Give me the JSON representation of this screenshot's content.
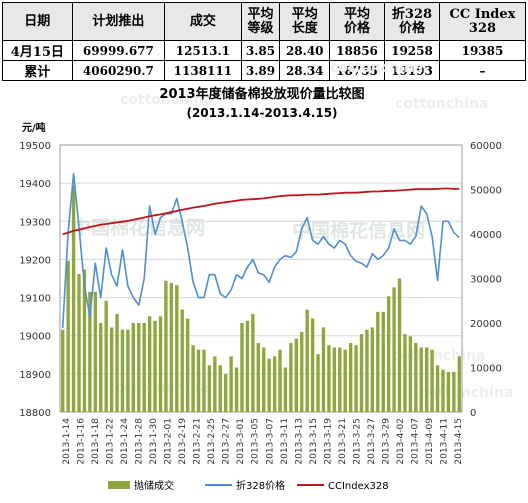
{
  "table": {
    "headers": [
      "日期",
      "计划推出",
      "成交",
      "平均\n等级",
      "平均\n长度",
      "平均\n价格",
      "折328\n价格",
      "CC Index\n328"
    ],
    "rows": [
      [
        "4月15日",
        "69999.677",
        "12513.1",
        "3.85",
        "28.40",
        "18856",
        "19258",
        "19385"
      ],
      [
        "累计",
        "4060290.7",
        "1138111",
        "3.89",
        "28.34",
        "18755",
        "19193",
        "–"
      ]
    ]
  },
  "watermark": "cottonchina",
  "watermark_cn": "中国棉花信息网",
  "chart_data": {
    "type": "bar+line",
    "title": "2013年度储备棉投放现价量比较图",
    "subtitle": "(2013.1.14-2013.4.15)",
    "left_axis_unit": "元/吨",
    "y_left": {
      "min": 18800,
      "max": 19500,
      "ticks": [
        18800,
        18900,
        19000,
        19100,
        19200,
        19300,
        19400,
        19500
      ]
    },
    "y_right": {
      "min": 0,
      "max": 60000,
      "ticks": [
        0,
        10000,
        20000,
        30000,
        40000,
        50000,
        60000
      ]
    },
    "x_tick_labels": [
      "2013-1-14",
      "2013-1-16",
      "2013-1-18",
      "2013-1-22",
      "2013-1-24",
      "2013-1-28",
      "2013-1-30",
      "2013-2-01",
      "2013-2-19",
      "2013-2-21",
      "2013-2-25",
      "2013-2-27",
      "2013-3-01",
      "2013-3-05",
      "2013-3-07",
      "2013-3-11",
      "2013-3-13",
      "2013-3-15",
      "2013-3-19",
      "2013-3-21",
      "2013-3-25",
      "2013-3-27",
      "2013-3-29",
      "2013-4-02",
      "2013-4-07",
      "2013-4-09",
      "2013-4-11",
      "2013-4-15"
    ],
    "colors": {
      "bars": "#8fa63c",
      "price328": "#4f8fcf",
      "ccindex": "#c0141b"
    },
    "series": [
      {
        "name": "抛储成交",
        "type": "bar",
        "axis": "right",
        "values": [
          18500,
          34000,
          51000,
          31000,
          32000,
          27000,
          27000,
          20000,
          25000,
          19000,
          22000,
          18500,
          18500,
          20000,
          20000,
          20000,
          21500,
          20500,
          21500,
          29500,
          29000,
          28500,
          23000,
          21000,
          15000,
          14000,
          14000,
          10500,
          12500,
          10500,
          8500,
          12500,
          10000,
          20000,
          20500,
          22000,
          15500,
          14500,
          12000,
          12500,
          14000,
          10000,
          15500,
          16500,
          18000,
          23000,
          21000,
          13000,
          19000,
          15000,
          14500,
          14500,
          14000,
          15500,
          15000,
          17500,
          18500,
          19000,
          22500,
          22500,
          26000,
          28000,
          30000,
          17500,
          17000,
          15500,
          14500,
          14500,
          14000,
          10500,
          9500,
          9000,
          9000,
          12500
        ]
      },
      {
        "name": "折328价格",
        "type": "line",
        "axis": "left",
        "values": [
          19020,
          19270,
          19425,
          19285,
          19130,
          19050,
          19190,
          19100,
          19230,
          19160,
          19130,
          19225,
          19130,
          19100,
          19080,
          19150,
          19340,
          19265,
          19310,
          19320,
          19320,
          19360,
          19300,
          19230,
          19140,
          19100,
          19100,
          19160,
          19160,
          19110,
          19100,
          19120,
          19160,
          19150,
          19180,
          19200,
          19165,
          19160,
          19140,
          19180,
          19200,
          19210,
          19205,
          19220,
          19280,
          19310,
          19250,
          19240,
          19260,
          19240,
          19230,
          19250,
          19240,
          19210,
          19195,
          19190,
          19180,
          19215,
          19200,
          19210,
          19230,
          19280,
          19250,
          19250,
          19240,
          19260,
          19340,
          19320,
          19260,
          19145,
          19300,
          19300,
          19270,
          19258
        ]
      },
      {
        "name": "CCIndex328",
        "type": "line",
        "axis": "left",
        "values": [
          19266,
          19270,
          19275,
          19278,
          19282,
          19285,
          19288,
          19291,
          19293,
          19295,
          19297,
          19299,
          19301,
          19304,
          19307,
          19310,
          19313,
          19316,
          19318,
          19321,
          19324,
          19327,
          19330,
          19333,
          19336,
          19338,
          19340,
          19343,
          19346,
          19348,
          19350,
          19352,
          19354,
          19356,
          19357,
          19358,
          19359,
          19360,
          19362,
          19364,
          19366,
          19367,
          19368,
          19368,
          19369,
          19370,
          19370,
          19370,
          19371,
          19372,
          19373,
          19374,
          19375,
          19375,
          19375,
          19376,
          19377,
          19378,
          19378,
          19379,
          19380,
          19380,
          19381,
          19382,
          19383,
          19384,
          19384,
          19384,
          19384,
          19385,
          19386,
          19386,
          19385,
          19385
        ]
      }
    ],
    "legend_position": "bottom"
  }
}
